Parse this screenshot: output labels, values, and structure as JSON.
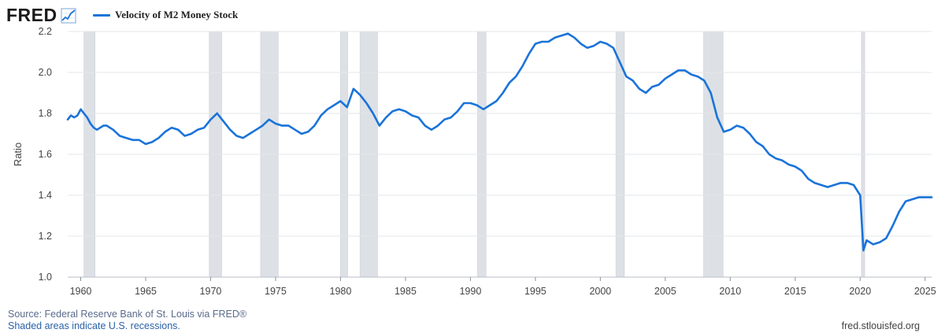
{
  "header": {
    "logo_text": "FRED",
    "logo_icon": "line-chart-icon"
  },
  "footer": {
    "source": "Source: Federal Reserve Bank of St. Louis via FRED®",
    "note": "Shaded areas indicate U.S. recessions.",
    "url": "fred.stlouisfed.org"
  },
  "colors": {
    "series": "#1a73d9",
    "recession": "#dde1e6",
    "grid": "#e3e6ea",
    "axis_text": "#444444"
  },
  "chart_data": {
    "type": "line",
    "title": "",
    "xlabel": "",
    "ylabel": "Ratio",
    "xlim": [
      1959.0,
      2025.5
    ],
    "ylim": [
      1.0,
      2.2
    ],
    "grid": "horizontal",
    "legend": "top-left",
    "y_ticks": [
      "1.0",
      "1.2",
      "1.4",
      "1.6",
      "1.8",
      "2.0",
      "2.2"
    ],
    "x_ticks": [
      "1960",
      "1965",
      "1970",
      "1975",
      "1980",
      "1985",
      "1990",
      "1995",
      "2000",
      "2005",
      "2010",
      "2015",
      "2020",
      "2025"
    ],
    "recessions": [
      [
        1960.25,
        1961.1
      ],
      [
        1969.9,
        1970.85
      ],
      [
        1973.85,
        1975.2
      ],
      [
        1980.0,
        1980.55
      ],
      [
        1981.5,
        1982.85
      ],
      [
        1990.55,
        1991.2
      ],
      [
        2001.2,
        2001.85
      ],
      [
        2007.95,
        2009.45
      ],
      [
        2020.1,
        2020.35
      ]
    ],
    "series": [
      {
        "name": "Velocity of M2 Money Stock",
        "x": [
          1959.0,
          1959.25,
          1959.5,
          1959.75,
          1960.0,
          1960.25,
          1960.5,
          1960.75,
          1961.0,
          1961.25,
          1961.5,
          1961.75,
          1962.0,
          1962.5,
          1963.0,
          1963.5,
          1964.0,
          1964.5,
          1965.0,
          1965.5,
          1966.0,
          1966.5,
          1967.0,
          1967.5,
          1968.0,
          1968.5,
          1969.0,
          1969.5,
          1970.0,
          1970.5,
          1971.0,
          1971.5,
          1972.0,
          1972.5,
          1973.0,
          1973.5,
          1974.0,
          1974.5,
          1975.0,
          1975.5,
          1976.0,
          1976.5,
          1977.0,
          1977.5,
          1978.0,
          1978.5,
          1979.0,
          1979.5,
          1980.0,
          1980.5,
          1981.0,
          1981.5,
          1982.0,
          1982.5,
          1983.0,
          1983.5,
          1984.0,
          1984.5,
          1985.0,
          1985.5,
          1986.0,
          1986.5,
          1987.0,
          1987.5,
          1988.0,
          1988.5,
          1989.0,
          1989.5,
          1990.0,
          1990.5,
          1991.0,
          1991.5,
          1992.0,
          1992.5,
          1993.0,
          1993.5,
          1994.0,
          1994.5,
          1995.0,
          1995.5,
          1996.0,
          1996.5,
          1997.0,
          1997.5,
          1998.0,
          1998.5,
          1999.0,
          1999.5,
          2000.0,
          2000.5,
          2001.0,
          2001.5,
          2002.0,
          2002.5,
          2003.0,
          2003.5,
          2004.0,
          2004.5,
          2005.0,
          2005.5,
          2006.0,
          2006.5,
          2007.0,
          2007.5,
          2008.0,
          2008.5,
          2009.0,
          2009.5,
          2010.0,
          2010.5,
          2011.0,
          2011.5,
          2012.0,
          2012.5,
          2013.0,
          2013.5,
          2014.0,
          2014.5,
          2015.0,
          2015.5,
          2016.0,
          2016.5,
          2017.0,
          2017.5,
          2018.0,
          2018.5,
          2019.0,
          2019.5,
          2020.0,
          2020.25,
          2020.5,
          2020.75,
          2021.0,
          2021.5,
          2022.0,
          2022.5,
          2023.0,
          2023.5,
          2024.0,
          2024.5,
          2025.0,
          2025.5
        ],
        "values": [
          1.77,
          1.79,
          1.78,
          1.79,
          1.82,
          1.8,
          1.78,
          1.75,
          1.73,
          1.72,
          1.73,
          1.74,
          1.74,
          1.72,
          1.69,
          1.68,
          1.67,
          1.67,
          1.65,
          1.66,
          1.68,
          1.71,
          1.73,
          1.72,
          1.69,
          1.7,
          1.72,
          1.73,
          1.77,
          1.8,
          1.76,
          1.72,
          1.69,
          1.68,
          1.7,
          1.72,
          1.74,
          1.77,
          1.75,
          1.74,
          1.74,
          1.72,
          1.7,
          1.71,
          1.74,
          1.79,
          1.82,
          1.84,
          1.86,
          1.83,
          1.92,
          1.89,
          1.85,
          1.8,
          1.74,
          1.78,
          1.81,
          1.82,
          1.81,
          1.79,
          1.78,
          1.74,
          1.72,
          1.74,
          1.77,
          1.78,
          1.81,
          1.85,
          1.85,
          1.84,
          1.82,
          1.84,
          1.86,
          1.9,
          1.95,
          1.98,
          2.03,
          2.09,
          2.14,
          2.15,
          2.15,
          2.17,
          2.18,
          2.19,
          2.17,
          2.14,
          2.12,
          2.13,
          2.15,
          2.14,
          2.12,
          2.05,
          1.98,
          1.96,
          1.92,
          1.9,
          1.93,
          1.94,
          1.97,
          1.99,
          2.01,
          2.01,
          1.99,
          1.98,
          1.96,
          1.9,
          1.78,
          1.71,
          1.72,
          1.74,
          1.73,
          1.7,
          1.66,
          1.64,
          1.6,
          1.58,
          1.57,
          1.55,
          1.54,
          1.52,
          1.48,
          1.46,
          1.45,
          1.44,
          1.45,
          1.46,
          1.46,
          1.45,
          1.4,
          1.13,
          1.18,
          1.17,
          1.16,
          1.17,
          1.19,
          1.25,
          1.32,
          1.37,
          1.38,
          1.39,
          1.39,
          1.39
        ]
      }
    ]
  }
}
